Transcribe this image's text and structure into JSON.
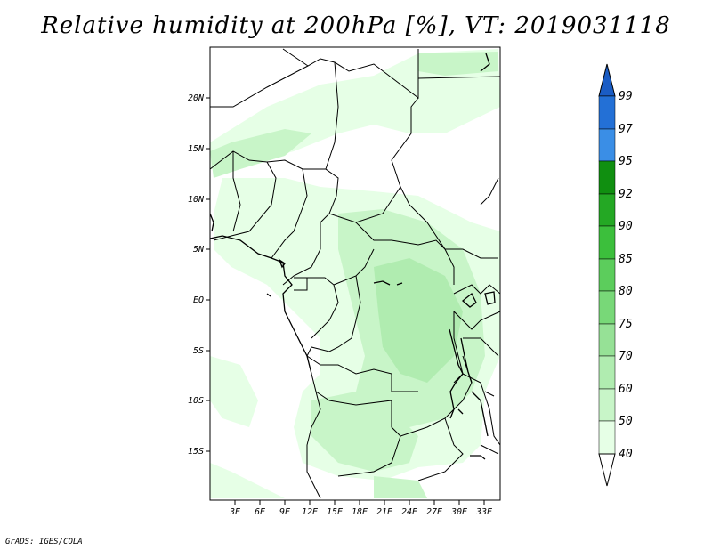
{
  "title": "Relative humidity at 200hPa [%], VT: 2019031118",
  "credit": "GrADS: IGES/COLA",
  "lat_labels": [
    "20N",
    "15N",
    "10N",
    "5N",
    "EQ",
    "5S",
    "10S",
    "15S"
  ],
  "lon_labels": [
    "3E",
    "6E",
    "9E",
    "12E",
    "15E",
    "18E",
    "21E",
    "24E",
    "27E",
    "30E",
    "33E"
  ],
  "colorbar": {
    "levels": [
      "40",
      "50",
      "60",
      "70",
      "75",
      "80",
      "85",
      "90",
      "92",
      "95",
      "97",
      "99"
    ],
    "colors": [
      "#ffffff",
      "#e6ffe6",
      "#c8f5c8",
      "#b0ecb0",
      "#96e196",
      "#78d878",
      "#5ccd5c",
      "#3cbf3c",
      "#24a824",
      "#108f10",
      "#3a8ee6",
      "#2370d6",
      "#1a5cc4"
    ]
  }
}
